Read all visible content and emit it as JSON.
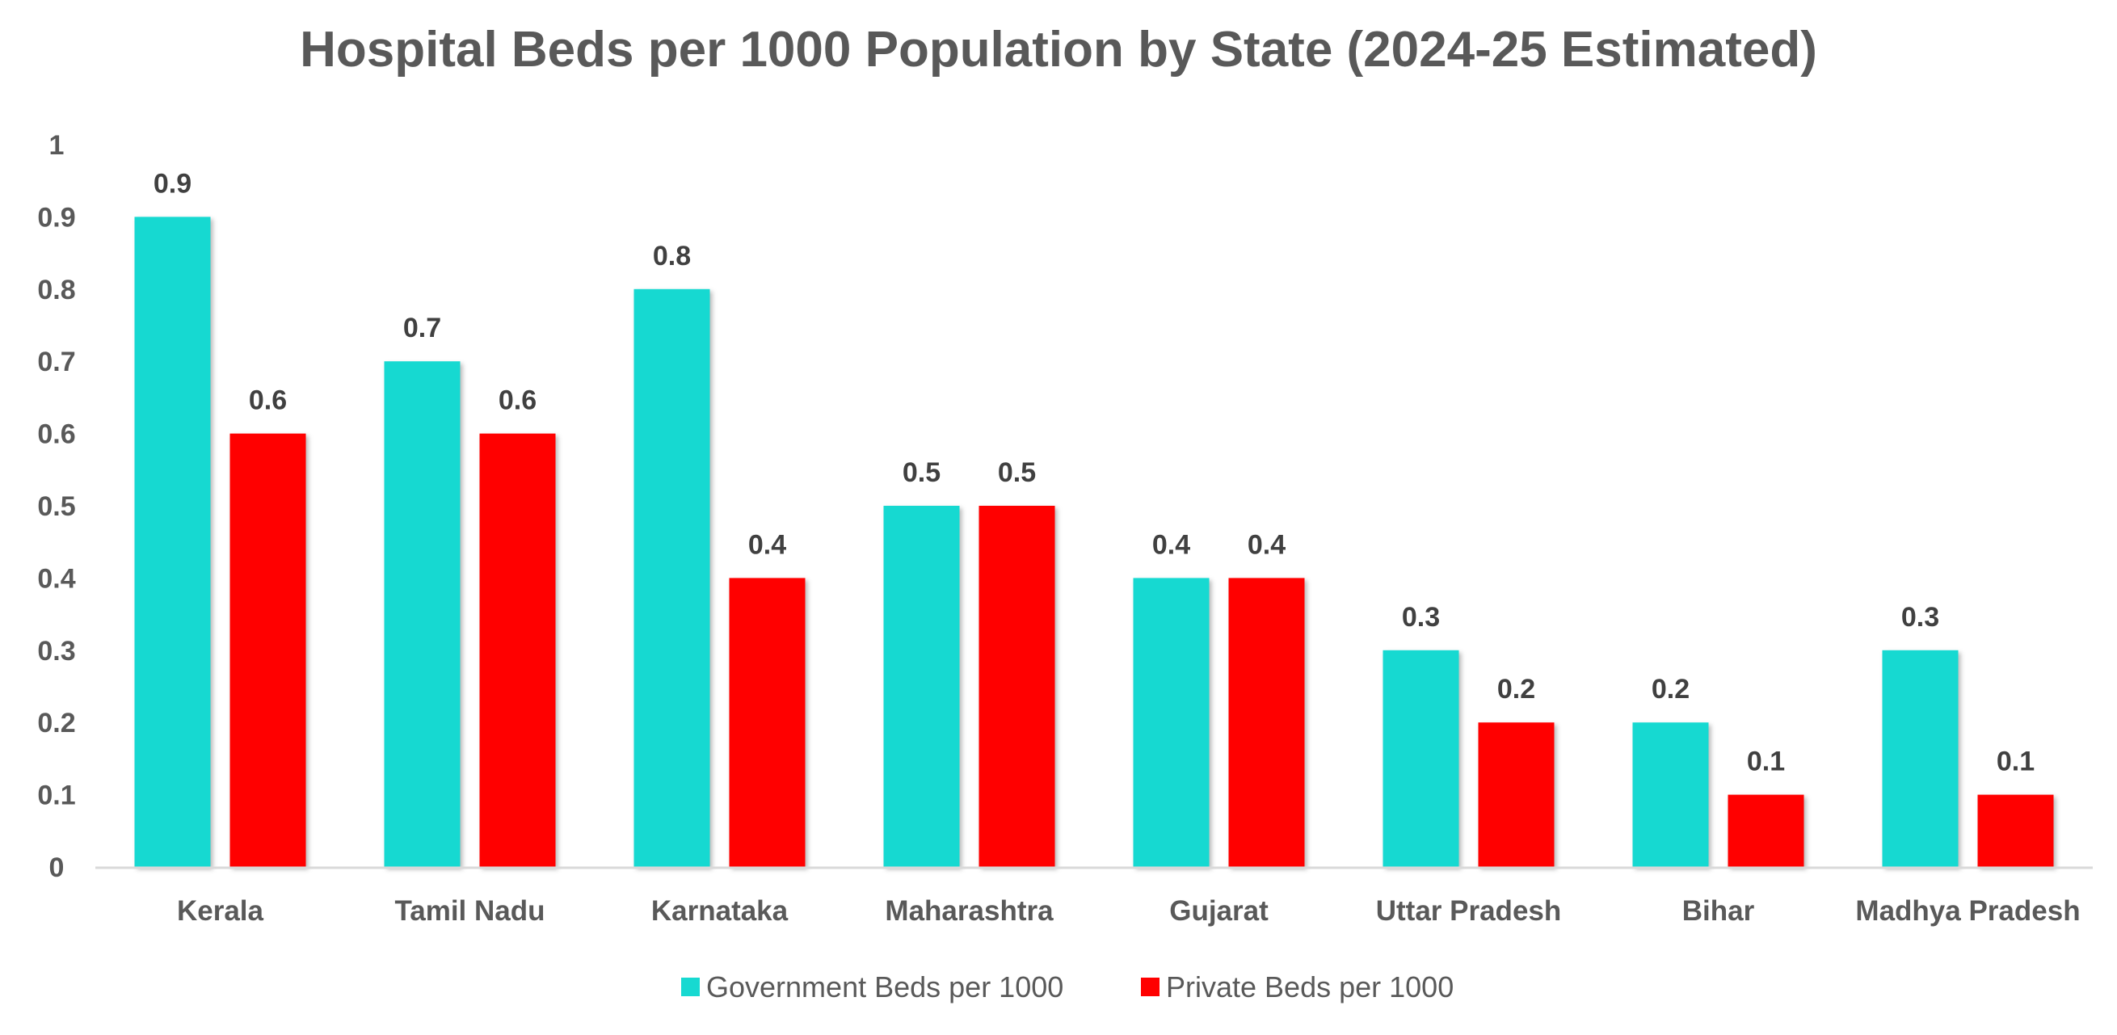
{
  "chart_data": {
    "type": "bar",
    "title": "Hospital Beds per 1000 Population by State (2024-25 Estimated)",
    "categories": [
      "Kerala",
      "Tamil Nadu",
      "Karnataka",
      "Maharashtra",
      "Gujarat",
      "Uttar Pradesh",
      "Bihar",
      "Madhya Pradesh"
    ],
    "series": [
      {
        "name": "Government Beds per 1000",
        "color": "#17D9D1",
        "values": [
          0.9,
          0.7,
          0.8,
          0.5,
          0.4,
          0.3,
          0.2,
          0.3
        ]
      },
      {
        "name": "Private Beds per 1000",
        "color": "#FF0000",
        "values": [
          0.6,
          0.6,
          0.4,
          0.5,
          0.4,
          0.2,
          0.1,
          0.1
        ]
      }
    ],
    "ylim": [
      0,
      1
    ],
    "yticks": [
      "0",
      "0.1",
      "0.2",
      "0.3",
      "0.4",
      "0.5",
      "0.6",
      "0.7",
      "0.8",
      "0.9",
      "1"
    ],
    "xlabel": "",
    "ylabel": "",
    "grid": false,
    "data_labels": true,
    "legend_position": "bottom"
  }
}
